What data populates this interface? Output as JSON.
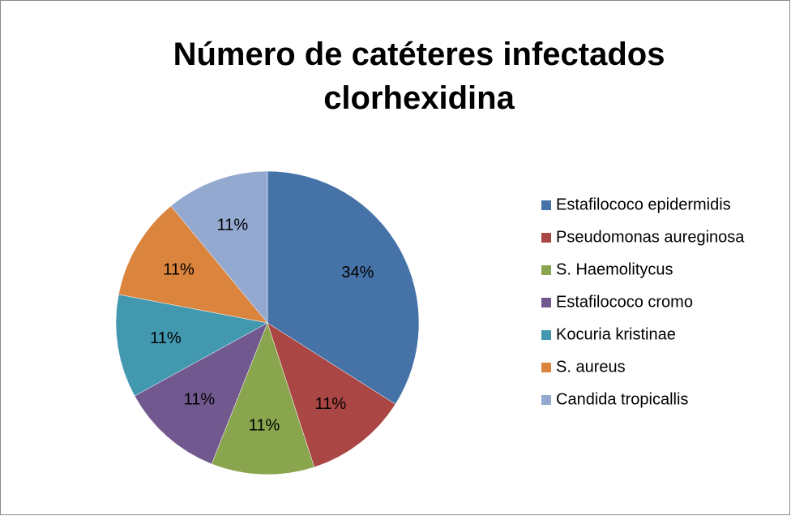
{
  "chart_data": {
    "type": "pie",
    "title": "Número de catéteres infectados clorhexidina",
    "categories": [
      "Estafilococo epidermidis",
      "Pseudomonas aureginosa",
      "S. Haemolitycus",
      "Estafilococo cromo",
      "Kocuria kristinae",
      "S. aureus",
      "Candida tropicallis"
    ],
    "values": [
      34,
      11,
      11,
      11,
      11,
      11,
      11
    ],
    "value_labels": [
      "34%",
      "11%",
      "11%",
      "11%",
      "11%",
      "11%",
      "11%"
    ],
    "colors": [
      "#4572a7",
      "#aa4643",
      "#89a54e",
      "#71588f",
      "#4198af",
      "#db843d",
      "#93a9cf"
    ],
    "legend": "right"
  }
}
